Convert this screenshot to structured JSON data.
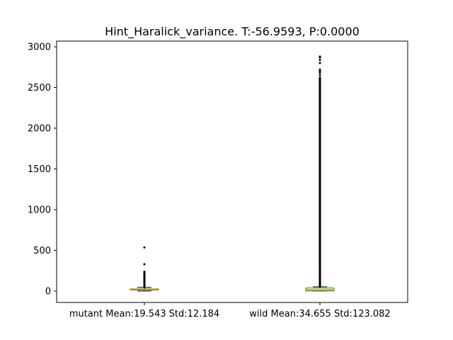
{
  "chart_data": {
    "type": "box",
    "title": "Hint_Haralick_variance. T:-56.9593, P:0.0000",
    "xlabel": "",
    "ylabel": "",
    "ylim": [
      -140,
      3070
    ],
    "yticks": [
      0,
      500,
      1000,
      1500,
      2000,
      2500,
      3000
    ],
    "ytick_labels": [
      "0",
      "500",
      "1000",
      "1500",
      "2000",
      "2500",
      "3000"
    ],
    "grid": false,
    "categories": [
      "mutant Mean:19.543 Std:12.184",
      "wild Mean:34.655 Std:123.082"
    ],
    "series": [
      {
        "q1": 12,
        "median": 17,
        "q3": 25,
        "whisker_low": 0,
        "whisker_high": 45,
        "box_color": "#2ca02c",
        "median_color": "#ff7f0e",
        "outliers": [
          47,
          50,
          53,
          56,
          60,
          63,
          66,
          70,
          74,
          78,
          82,
          87,
          92,
          97,
          103,
          110,
          117,
          125,
          134,
          143,
          152,
          162,
          172,
          183,
          195,
          207,
          218,
          228,
          238,
          330,
          535
        ]
      },
      {
        "q1": 2,
        "median": 15,
        "q3": 38,
        "whisker_low": 0,
        "whisker_high": 52,
        "box_color": "#2ca02c",
        "median_color": "#ff7f0e",
        "outlier_range": [
          55,
          2610
        ],
        "outliers": [
          2620,
          2650,
          2680,
          2700,
          2720,
          2800,
          2840,
          2870,
          2880
        ]
      }
    ]
  }
}
